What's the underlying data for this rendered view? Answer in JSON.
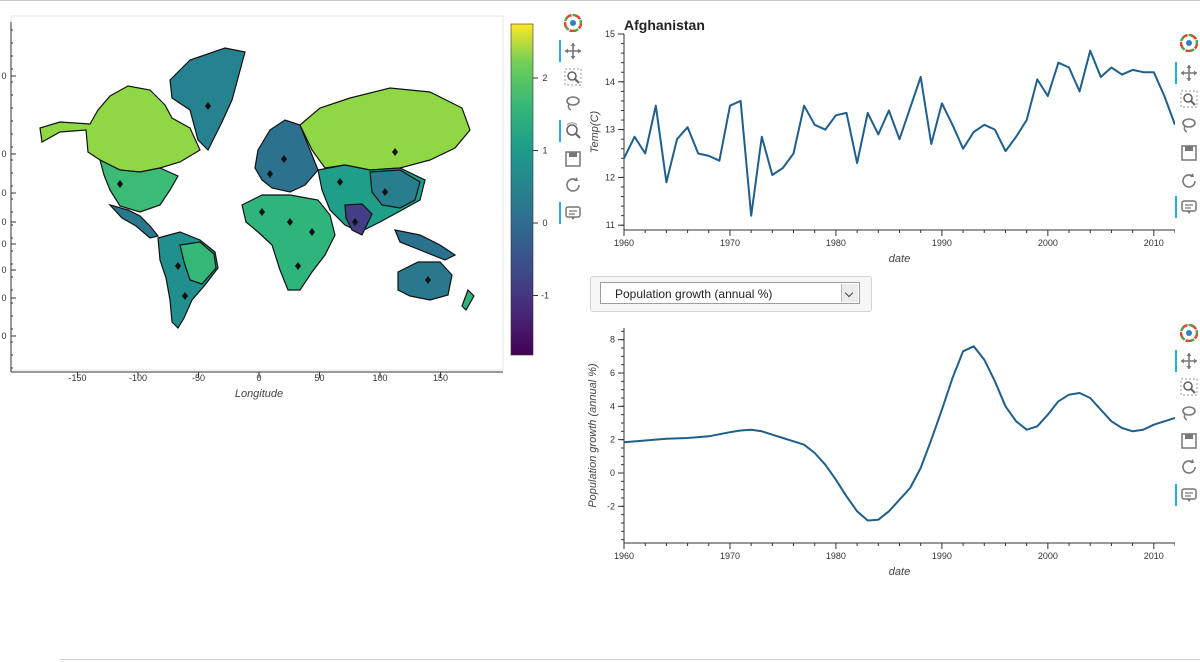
{
  "map_panel": {
    "xlabel": "Longitude",
    "x_ticks": [
      "-150",
      "-100",
      "-50",
      "0",
      "50",
      "100",
      "150"
    ],
    "y_tick_fragments": [
      "0",
      "0",
      "0",
      "0",
      "0",
      "0",
      "0",
      "0",
      "0"
    ],
    "colorbar_ticks": [
      "2",
      "1",
      "0",
      "-1"
    ],
    "colormap": "viridis",
    "toolbar": [
      "logo-icon",
      "pan-icon",
      "box-zoom-icon",
      "lasso-icon",
      "wheel-zoom-icon",
      "save-icon",
      "reset-icon",
      "hover-icon"
    ]
  },
  "temp_panel": {
    "title": "Afghanistan",
    "toolbar": [
      "logo-icon",
      "pan-icon",
      "box-zoom-icon",
      "lasso-icon",
      "save-icon",
      "reset-icon",
      "hover-icon"
    ]
  },
  "dropdown": {
    "selected": "Population growth (annual %)"
  },
  "pop_panel": {
    "toolbar": [
      "logo-icon",
      "pan-icon",
      "box-zoom-icon",
      "lasso-icon",
      "save-icon",
      "reset-icon",
      "hover-icon"
    ]
  },
  "colors": {
    "line": "#1f5f8b",
    "accent": "#26aae1"
  },
  "chart_data": [
    {
      "type": "line",
      "title": "Afghanistan",
      "xlabel": "date",
      "ylabel": "Temp(C)",
      "xlim": [
        1960,
        2012
      ],
      "ylim": [
        10.9,
        15.0
      ],
      "x_ticks": [
        "1960",
        "1970",
        "1980",
        "1990",
        "2000",
        "2010"
      ],
      "y_ticks": [
        "11",
        "12",
        "13",
        "14",
        "15"
      ],
      "x": [
        1960,
        1961,
        1962,
        1963,
        1964,
        1965,
        1966,
        1967,
        1968,
        1969,
        1970,
        1971,
        1972,
        1973,
        1974,
        1975,
        1976,
        1977,
        1978,
        1979,
        1980,
        1981,
        1982,
        1983,
        1984,
        1985,
        1986,
        1987,
        1988,
        1989,
        1990,
        1991,
        1992,
        1993,
        1994,
        1995,
        1996,
        1997,
        1998,
        1999,
        2000,
        2001,
        2002,
        2003,
        2004,
        2005,
        2006,
        2007,
        2008,
        2009,
        2010,
        2011,
        2012
      ],
      "y": [
        12.4,
        12.85,
        12.5,
        13.5,
        11.9,
        12.8,
        13.05,
        12.5,
        12.45,
        12.35,
        13.5,
        13.6,
        11.2,
        12.85,
        12.05,
        12.2,
        12.5,
        13.5,
        13.1,
        13.0,
        13.3,
        13.35,
        12.3,
        13.35,
        12.9,
        13.4,
        12.8,
        13.45,
        14.1,
        12.7,
        13.55,
        13.1,
        12.6,
        12.95,
        13.1,
        13.0,
        12.55,
        12.85,
        13.2,
        14.05,
        13.7,
        14.4,
        14.3,
        13.8,
        14.65,
        14.1,
        14.3,
        14.15,
        14.25,
        14.2,
        14.2,
        13.7,
        13.1
      ]
    },
    {
      "type": "line",
      "title": "",
      "xlabel": "date",
      "ylabel": "Population growth (annual %)",
      "xlim": [
        1960,
        2012
      ],
      "ylim": [
        -4.2,
        8.7
      ],
      "x_ticks": [
        "1960",
        "1970",
        "1980",
        "1990",
        "2000",
        "2010"
      ],
      "y_ticks": [
        "8",
        "6",
        "4",
        "2",
        "0",
        "-2"
      ],
      "x": [
        1960,
        1962,
        1964,
        1966,
        1968,
        1970,
        1971,
        1972,
        1973,
        1974,
        1975,
        1976,
        1977,
        1978,
        1979,
        1980,
        1981,
        1982,
        1983,
        1984,
        1985,
        1986,
        1987,
        1988,
        1989,
        1990,
        1991,
        1992,
        1993,
        1994,
        1995,
        1996,
        1997,
        1998,
        1999,
        2000,
        2001,
        2002,
        2003,
        2004,
        2005,
        2006,
        2007,
        2008,
        2009,
        2010,
        2011,
        2012
      ],
      "y": [
        1.85,
        1.95,
        2.05,
        2.1,
        2.2,
        2.45,
        2.55,
        2.6,
        2.5,
        2.3,
        2.1,
        1.9,
        1.7,
        1.2,
        0.5,
        -0.4,
        -1.4,
        -2.3,
        -2.85,
        -2.8,
        -2.3,
        -1.6,
        -0.9,
        0.3,
        2.0,
        3.8,
        5.7,
        7.3,
        7.6,
        6.8,
        5.5,
        4.0,
        3.1,
        2.6,
        2.8,
        3.5,
        4.3,
        4.7,
        4.8,
        4.5,
        3.8,
        3.1,
        2.7,
        2.5,
        2.6,
        2.9,
        3.1,
        3.3
      ]
    }
  ]
}
